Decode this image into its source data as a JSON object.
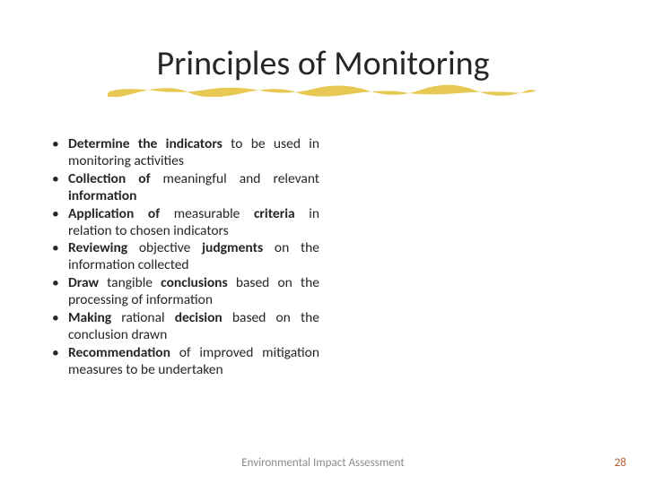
{
  "title": "Principles of Monitoring",
  "title_fontsize": 38,
  "title_color": "#262626",
  "underline_color": "#e6c54a",
  "background_color": "#ffffff",
  "bullets_fontsize": 15.5,
  "bullets_color": "#262626",
  "bullets": [
    "<b>Determine the indicators</b> to be used in monitoring activities",
    "<b>Collection of</b> meaningful and relevant <b>information</b>",
    "<b>Application of</b> measurable <b>criteria</b> in relation to chosen indicators",
    "<b>Reviewing</b> objective <b>judgments</b> on the information collected",
    "<b>Draw</b> tangible <b>conclusions</b> based on the processing of information",
    "<b>Making</b> rational <b>decision</b> based on the conclusion drawn",
    "<b>Recommendation</b> of improved mitigation measures to be undertaken"
  ],
  "footer": {
    "center": "Environmental Impact Assessment",
    "page": "28",
    "center_color": "#8a8a8a",
    "page_color": "#b45a2a",
    "fontsize": 13
  }
}
